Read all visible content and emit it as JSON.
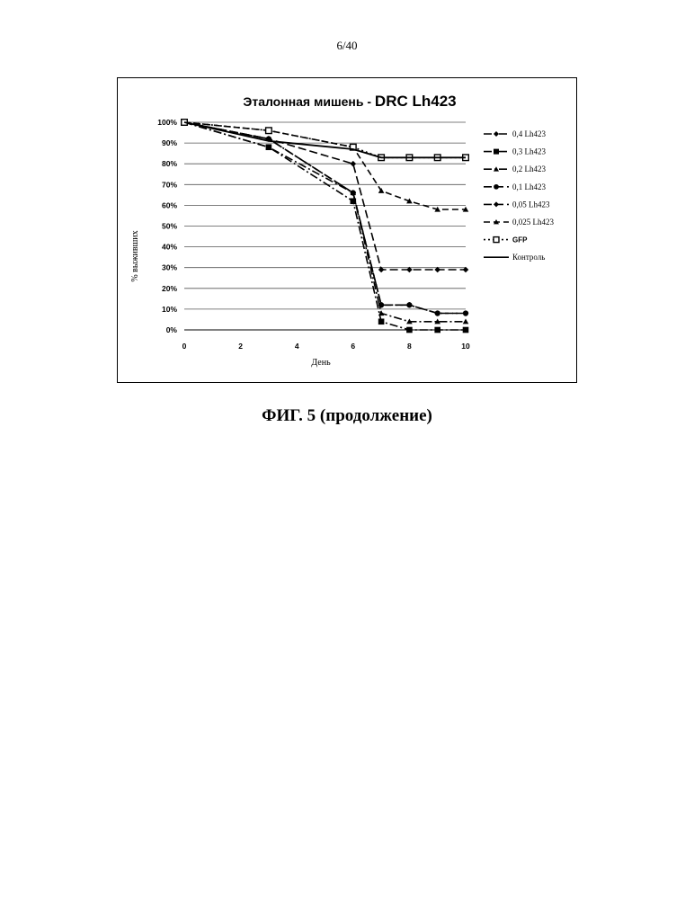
{
  "page": {
    "page_number": "6/40",
    "caption": "ФИГ. 5 (продолжение)"
  },
  "chart_data": {
    "type": "line",
    "title_part1": "Эталонная мишень - ",
    "title_part2": "DRC Lh423",
    "xlabel": "День",
    "ylabel": "% выживших",
    "xlim": [
      0,
      10
    ],
    "ylim": [
      0,
      100
    ],
    "x_ticks": [
      0,
      2,
      4,
      6,
      8,
      10
    ],
    "y_ticks": [
      0,
      10,
      20,
      30,
      40,
      50,
      60,
      70,
      80,
      90,
      100
    ],
    "y_tick_labels": [
      "0%",
      "10%",
      "20%",
      "30%",
      "40%",
      "50%",
      "60%",
      "70%",
      "80%",
      "90%",
      "100%"
    ],
    "grid": "horizontal",
    "legend_position": "right",
    "series": [
      {
        "name": "0,4 Lh423",
        "marker": "diamond",
        "dash": "9 3 2 3",
        "x": [
          0,
          3,
          6,
          7,
          8,
          9,
          10
        ],
        "y": [
          100,
          92,
          66,
          12,
          12,
          8,
          8
        ]
      },
      {
        "name": "0,3 Lh423",
        "marker": "square",
        "dash": "9 3 2 3",
        "x": [
          0,
          3,
          6,
          7,
          8,
          9,
          10
        ],
        "y": [
          100,
          88,
          62,
          4,
          0,
          0,
          0
        ]
      },
      {
        "name": "0,2 Lh423",
        "marker": "triangle",
        "dash": "9 3 2 3",
        "x": [
          0,
          3,
          6,
          7,
          8,
          9,
          10
        ],
        "y": [
          100,
          88,
          66,
          8,
          4,
          4,
          4
        ]
      },
      {
        "name": "0,1 Lh423",
        "marker": "circle",
        "dash": "9 4",
        "x": [
          0,
          3,
          6,
          7,
          8,
          9,
          10
        ],
        "y": [
          100,
          92,
          66,
          12,
          12,
          8,
          8
        ]
      },
      {
        "name": "0,05 Lh423",
        "marker": "diamond",
        "dash": "9 4",
        "x": [
          0,
          3,
          6,
          7,
          8,
          9,
          10
        ],
        "y": [
          100,
          92,
          80,
          29,
          29,
          29,
          29
        ]
      },
      {
        "name": "0,025 Lh423",
        "marker": "triangle",
        "dash": "7 4",
        "x": [
          0,
          3,
          6,
          7,
          8,
          9,
          10
        ],
        "y": [
          100,
          96,
          88,
          67,
          62,
          58,
          58
        ]
      },
      {
        "name": "GFP",
        "marker": "square-open",
        "dash": "2 3",
        "x": [
          0,
          3,
          6,
          7,
          8,
          9,
          10
        ],
        "y": [
          100,
          96,
          88,
          83,
          83,
          83,
          83
        ]
      },
      {
        "name": "Контроль",
        "marker": "none",
        "dash": "",
        "x": [
          0,
          3,
          6,
          7,
          8,
          9,
          10
        ],
        "y": [
          100,
          91,
          87,
          83,
          83,
          83,
          83
        ]
      }
    ]
  }
}
